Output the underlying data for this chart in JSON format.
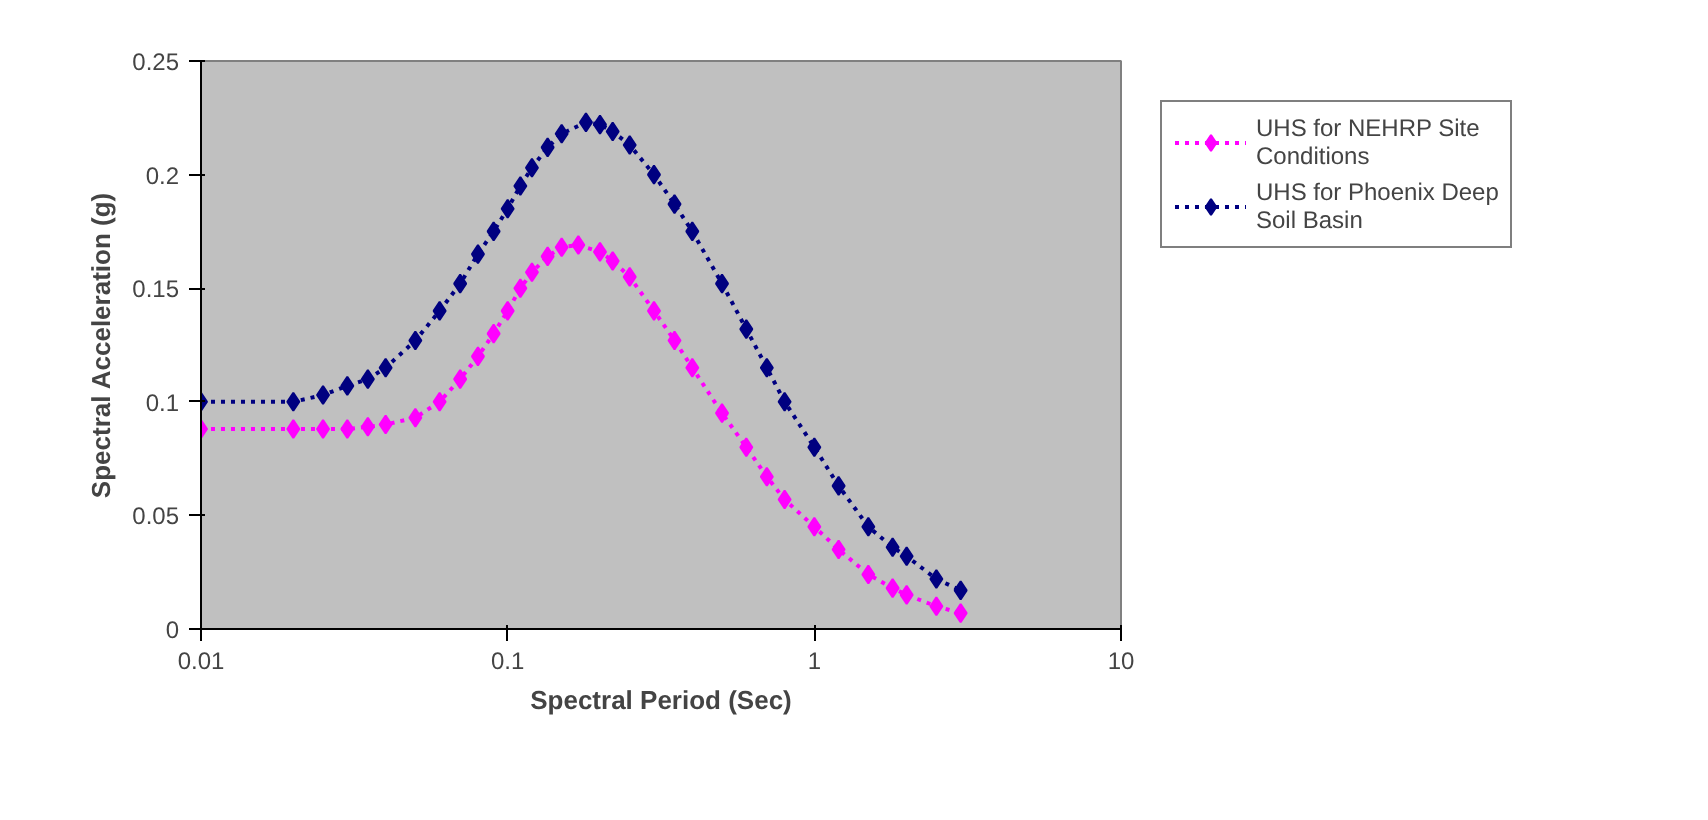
{
  "chart_data": {
    "type": "line",
    "xlabel": "Spectral Period (Sec)",
    "ylabel": "Spectral Acceleration (g)",
    "log": "x",
    "xlim": [
      0.01,
      10
    ],
    "xticks": [
      0.01,
      0.1,
      1,
      10
    ],
    "ylim": [
      0,
      0.25
    ],
    "yticks": [
      0,
      0.05,
      0.1,
      0.15,
      0.2,
      0.25
    ],
    "grid": false,
    "legend": "right",
    "marker": "diamond",
    "line_style": "dotted",
    "series": [
      {
        "name": "UHS for NEHRP Site Conditions",
        "color": "#ff00ff",
        "x": [
          0.01,
          0.02,
          0.025,
          0.03,
          0.035,
          0.04,
          0.05,
          0.06,
          0.07,
          0.08,
          0.09,
          0.1,
          0.11,
          0.12,
          0.135,
          0.15,
          0.17,
          0.2,
          0.22,
          0.25,
          0.3,
          0.35,
          0.4,
          0.5,
          0.6,
          0.7,
          0.8,
          1.0,
          1.2,
          1.5,
          1.8,
          2.0,
          2.5,
          3.0
        ],
        "values": [
          0.088,
          0.088,
          0.088,
          0.088,
          0.089,
          0.09,
          0.093,
          0.1,
          0.11,
          0.12,
          0.13,
          0.14,
          0.15,
          0.157,
          0.164,
          0.168,
          0.169,
          0.166,
          0.162,
          0.155,
          0.14,
          0.127,
          0.115,
          0.095,
          0.08,
          0.067,
          0.057,
          0.045,
          0.035,
          0.024,
          0.018,
          0.015,
          0.01,
          0.007
        ]
      },
      {
        "name": "UHS for Phoenix Deep Soil Basin",
        "color": "#000080",
        "x": [
          0.01,
          0.02,
          0.025,
          0.03,
          0.035,
          0.04,
          0.05,
          0.06,
          0.07,
          0.08,
          0.09,
          0.1,
          0.11,
          0.12,
          0.135,
          0.15,
          0.18,
          0.2,
          0.22,
          0.25,
          0.3,
          0.35,
          0.4,
          0.5,
          0.6,
          0.7,
          0.8,
          1.0,
          1.2,
          1.5,
          1.8,
          2.0,
          2.5,
          3.0
        ],
        "values": [
          0.1,
          0.1,
          0.103,
          0.107,
          0.11,
          0.115,
          0.127,
          0.14,
          0.152,
          0.165,
          0.175,
          0.185,
          0.195,
          0.203,
          0.212,
          0.218,
          0.223,
          0.222,
          0.219,
          0.213,
          0.2,
          0.187,
          0.175,
          0.152,
          0.132,
          0.115,
          0.1,
          0.08,
          0.063,
          0.045,
          0.036,
          0.032,
          0.022,
          0.017
        ]
      }
    ]
  }
}
